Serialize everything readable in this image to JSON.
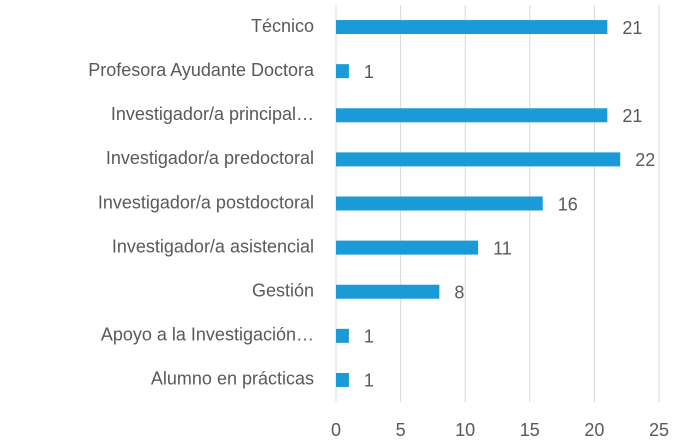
{
  "chart_data": {
    "type": "bar",
    "orientation": "horizontal",
    "categories": [
      "Técnico",
      "Profesora Ayudante Doctora",
      "Investigador/a principal…",
      "Investigador/a predoctoral",
      "Investigador/a postdoctoral",
      "Investigador/a asistencial",
      "Gestión",
      "Apoyo a la Investigación…",
      "Alumno en prácticas"
    ],
    "values": [
      21,
      1,
      21,
      22,
      16,
      11,
      8,
      1,
      1
    ],
    "color": "#1a9ad6",
    "xlim": [
      0,
      25
    ],
    "xticks": [
      0,
      5,
      10,
      15,
      20,
      25
    ],
    "grid": true
  }
}
